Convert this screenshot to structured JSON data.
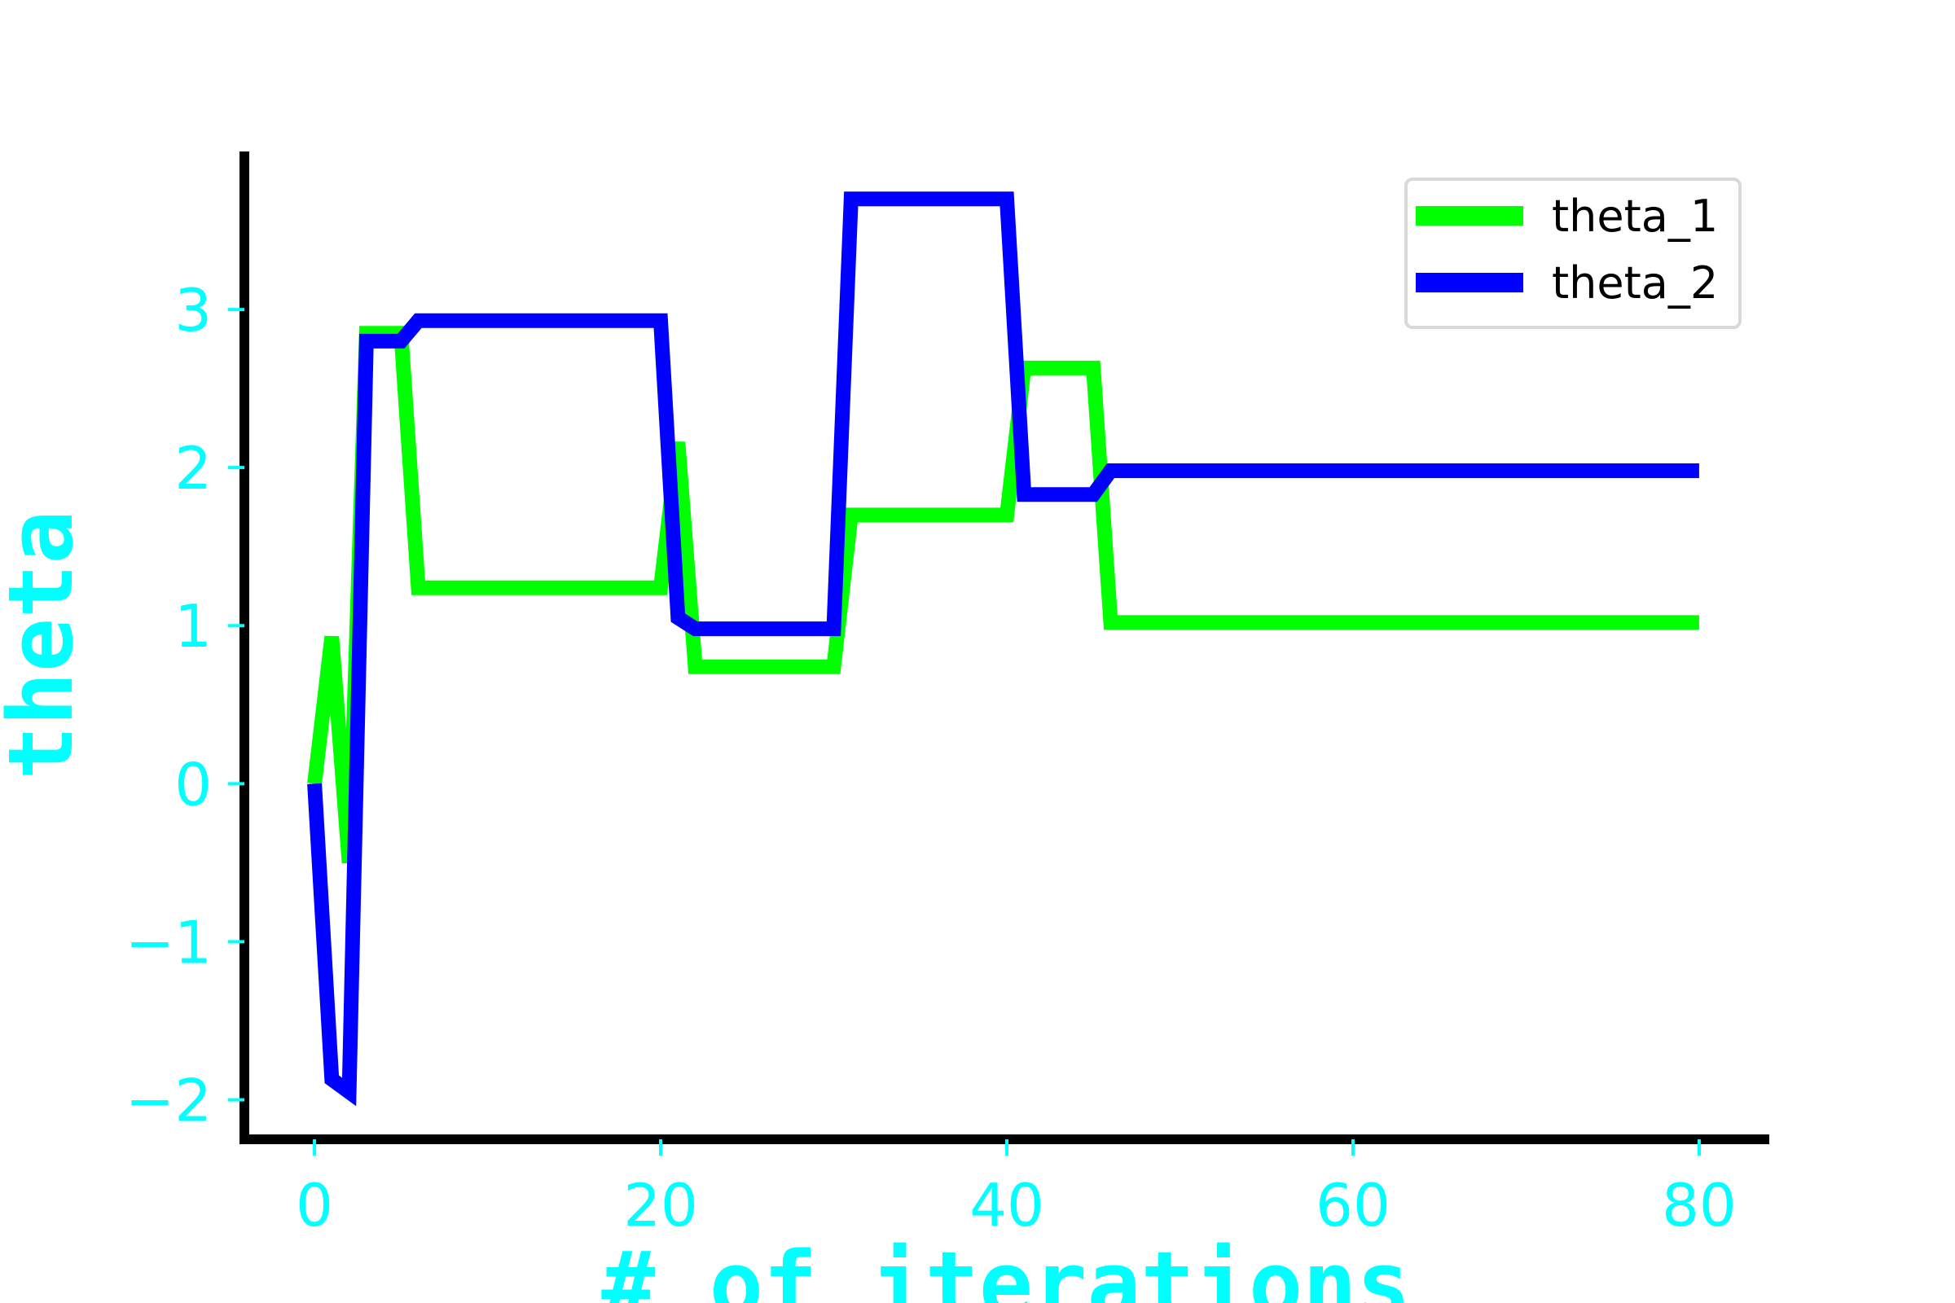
{
  "chart_data": {
    "type": "line",
    "xlabel": "# of iterations",
    "ylabel": "theta",
    "xlim": [
      -4.05,
      84.05
    ],
    "ylim": [
      -2.25,
      4.0
    ],
    "xticks": [
      0,
      20,
      40,
      60,
      80
    ],
    "xtick_labels": [
      "0",
      "20",
      "40",
      "60",
      "80"
    ],
    "yticks": [
      -2,
      -1,
      0,
      1,
      2,
      3
    ],
    "ytick_labels": [
      "−2",
      "−1",
      "0",
      "1",
      "2",
      "3"
    ],
    "grid": false,
    "legend_position": "top-right",
    "series": [
      {
        "name": "theta_1",
        "color": "#00ff00",
        "x": [
          0,
          1,
          2,
          3,
          4,
          5,
          6,
          7,
          8,
          9,
          10,
          11,
          12,
          13,
          14,
          15,
          16,
          17,
          18,
          19,
          20,
          21,
          22,
          23,
          24,
          25,
          26,
          27,
          28,
          29,
          30,
          31,
          32,
          33,
          34,
          35,
          36,
          37,
          38,
          39,
          40,
          41,
          42,
          43,
          44,
          45,
          46,
          47,
          48,
          49,
          50,
          51,
          52,
          53,
          54,
          55,
          56,
          57,
          58,
          59,
          60,
          61,
          62,
          63,
          64,
          65,
          66,
          67,
          68,
          69,
          70,
          71,
          72,
          73,
          74,
          75,
          76,
          77,
          78,
          79,
          80
        ],
        "y": [
          0,
          0.93,
          -0.5,
          2.85,
          2.85,
          2.85,
          1.24,
          1.24,
          1.24,
          1.24,
          1.24,
          1.24,
          1.24,
          1.24,
          1.24,
          1.24,
          1.24,
          1.24,
          1.24,
          1.24,
          1.24,
          2.16,
          0.74,
          0.74,
          0.74,
          0.74,
          0.74,
          0.74,
          0.74,
          0.74,
          0.74,
          1.7,
          1.7,
          1.7,
          1.7,
          1.7,
          1.7,
          1.7,
          1.7,
          1.7,
          1.7,
          2.63,
          2.63,
          2.63,
          2.63,
          2.63,
          1.02,
          1.02,
          1.02,
          1.02,
          1.02,
          1.02,
          1.02,
          1.02,
          1.02,
          1.02,
          1.02,
          1.02,
          1.02,
          1.02,
          1.02,
          1.02,
          1.02,
          1.02,
          1.02,
          1.02,
          1.02,
          1.02,
          1.02,
          1.02,
          1.02,
          1.02,
          1.02,
          1.02,
          1.02,
          1.02,
          1.02,
          1.02,
          1.02,
          1.02,
          1.02
        ]
      },
      {
        "name": "theta_2",
        "color": "#0000ff",
        "x": [
          0,
          1,
          2,
          3,
          4,
          5,
          6,
          7,
          8,
          9,
          10,
          11,
          12,
          13,
          14,
          15,
          16,
          17,
          18,
          19,
          20,
          21,
          22,
          23,
          24,
          25,
          26,
          27,
          28,
          29,
          30,
          31,
          32,
          33,
          34,
          35,
          36,
          37,
          38,
          39,
          40,
          41,
          42,
          43,
          44,
          45,
          46,
          47,
          48,
          49,
          50,
          51,
          52,
          53,
          54,
          55,
          56,
          57,
          58,
          59,
          60,
          61,
          62,
          63,
          64,
          65,
          66,
          67,
          68,
          69,
          70,
          71,
          72,
          73,
          74,
          75,
          76,
          77,
          78,
          79,
          80
        ],
        "y": [
          0,
          -1.87,
          -1.95,
          2.8,
          2.8,
          2.8,
          2.93,
          2.93,
          2.93,
          2.93,
          2.93,
          2.93,
          2.93,
          2.93,
          2.93,
          2.93,
          2.93,
          2.93,
          2.93,
          2.93,
          2.93,
          1.05,
          0.98,
          0.98,
          0.98,
          0.98,
          0.98,
          0.98,
          0.98,
          0.98,
          0.98,
          3.7,
          3.7,
          3.7,
          3.7,
          3.7,
          3.7,
          3.7,
          3.7,
          3.7,
          3.7,
          1.83,
          1.83,
          1.83,
          1.83,
          1.83,
          1.98,
          1.98,
          1.98,
          1.98,
          1.98,
          1.98,
          1.98,
          1.98,
          1.98,
          1.98,
          1.98,
          1.98,
          1.98,
          1.98,
          1.98,
          1.98,
          1.98,
          1.98,
          1.98,
          1.98,
          1.98,
          1.98,
          1.98,
          1.98,
          1.98,
          1.98,
          1.98,
          1.98,
          1.98,
          1.98,
          1.98,
          1.98,
          1.98,
          1.98,
          1.98
        ]
      }
    ]
  }
}
